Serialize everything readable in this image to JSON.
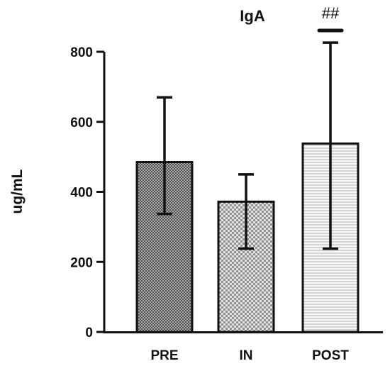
{
  "chart_data": {
    "type": "bar",
    "title": "IgA",
    "xlabel": "",
    "ylabel": "ug/mL",
    "ylim": [
      0,
      800
    ],
    "yticks": [
      0,
      200,
      400,
      600,
      800
    ],
    "categories": [
      "PRE",
      "IN",
      "POST"
    ],
    "values": [
      485,
      372,
      538
    ],
    "error_low": [
      337,
      238,
      238
    ],
    "error_high": [
      670,
      450,
      826
    ],
    "fill_patterns": [
      "dense-crosshatch",
      "checkerboard",
      "horizontal-stripes"
    ],
    "annotations": [
      {
        "category": "POST",
        "text": "##"
      }
    ],
    "grid": false,
    "legend": "none"
  },
  "colors": {
    "axis": "#111111",
    "bar_stroke": "#111111",
    "pre_fill_dark": "#555555",
    "pre_fill_light": "#d6d6d6",
    "in_fill_dark": "#8a8a8a",
    "in_fill_light": "#e2e2e2",
    "post_fill_dark": "#bbbbbb",
    "post_fill_light": "#f4f4f4"
  }
}
